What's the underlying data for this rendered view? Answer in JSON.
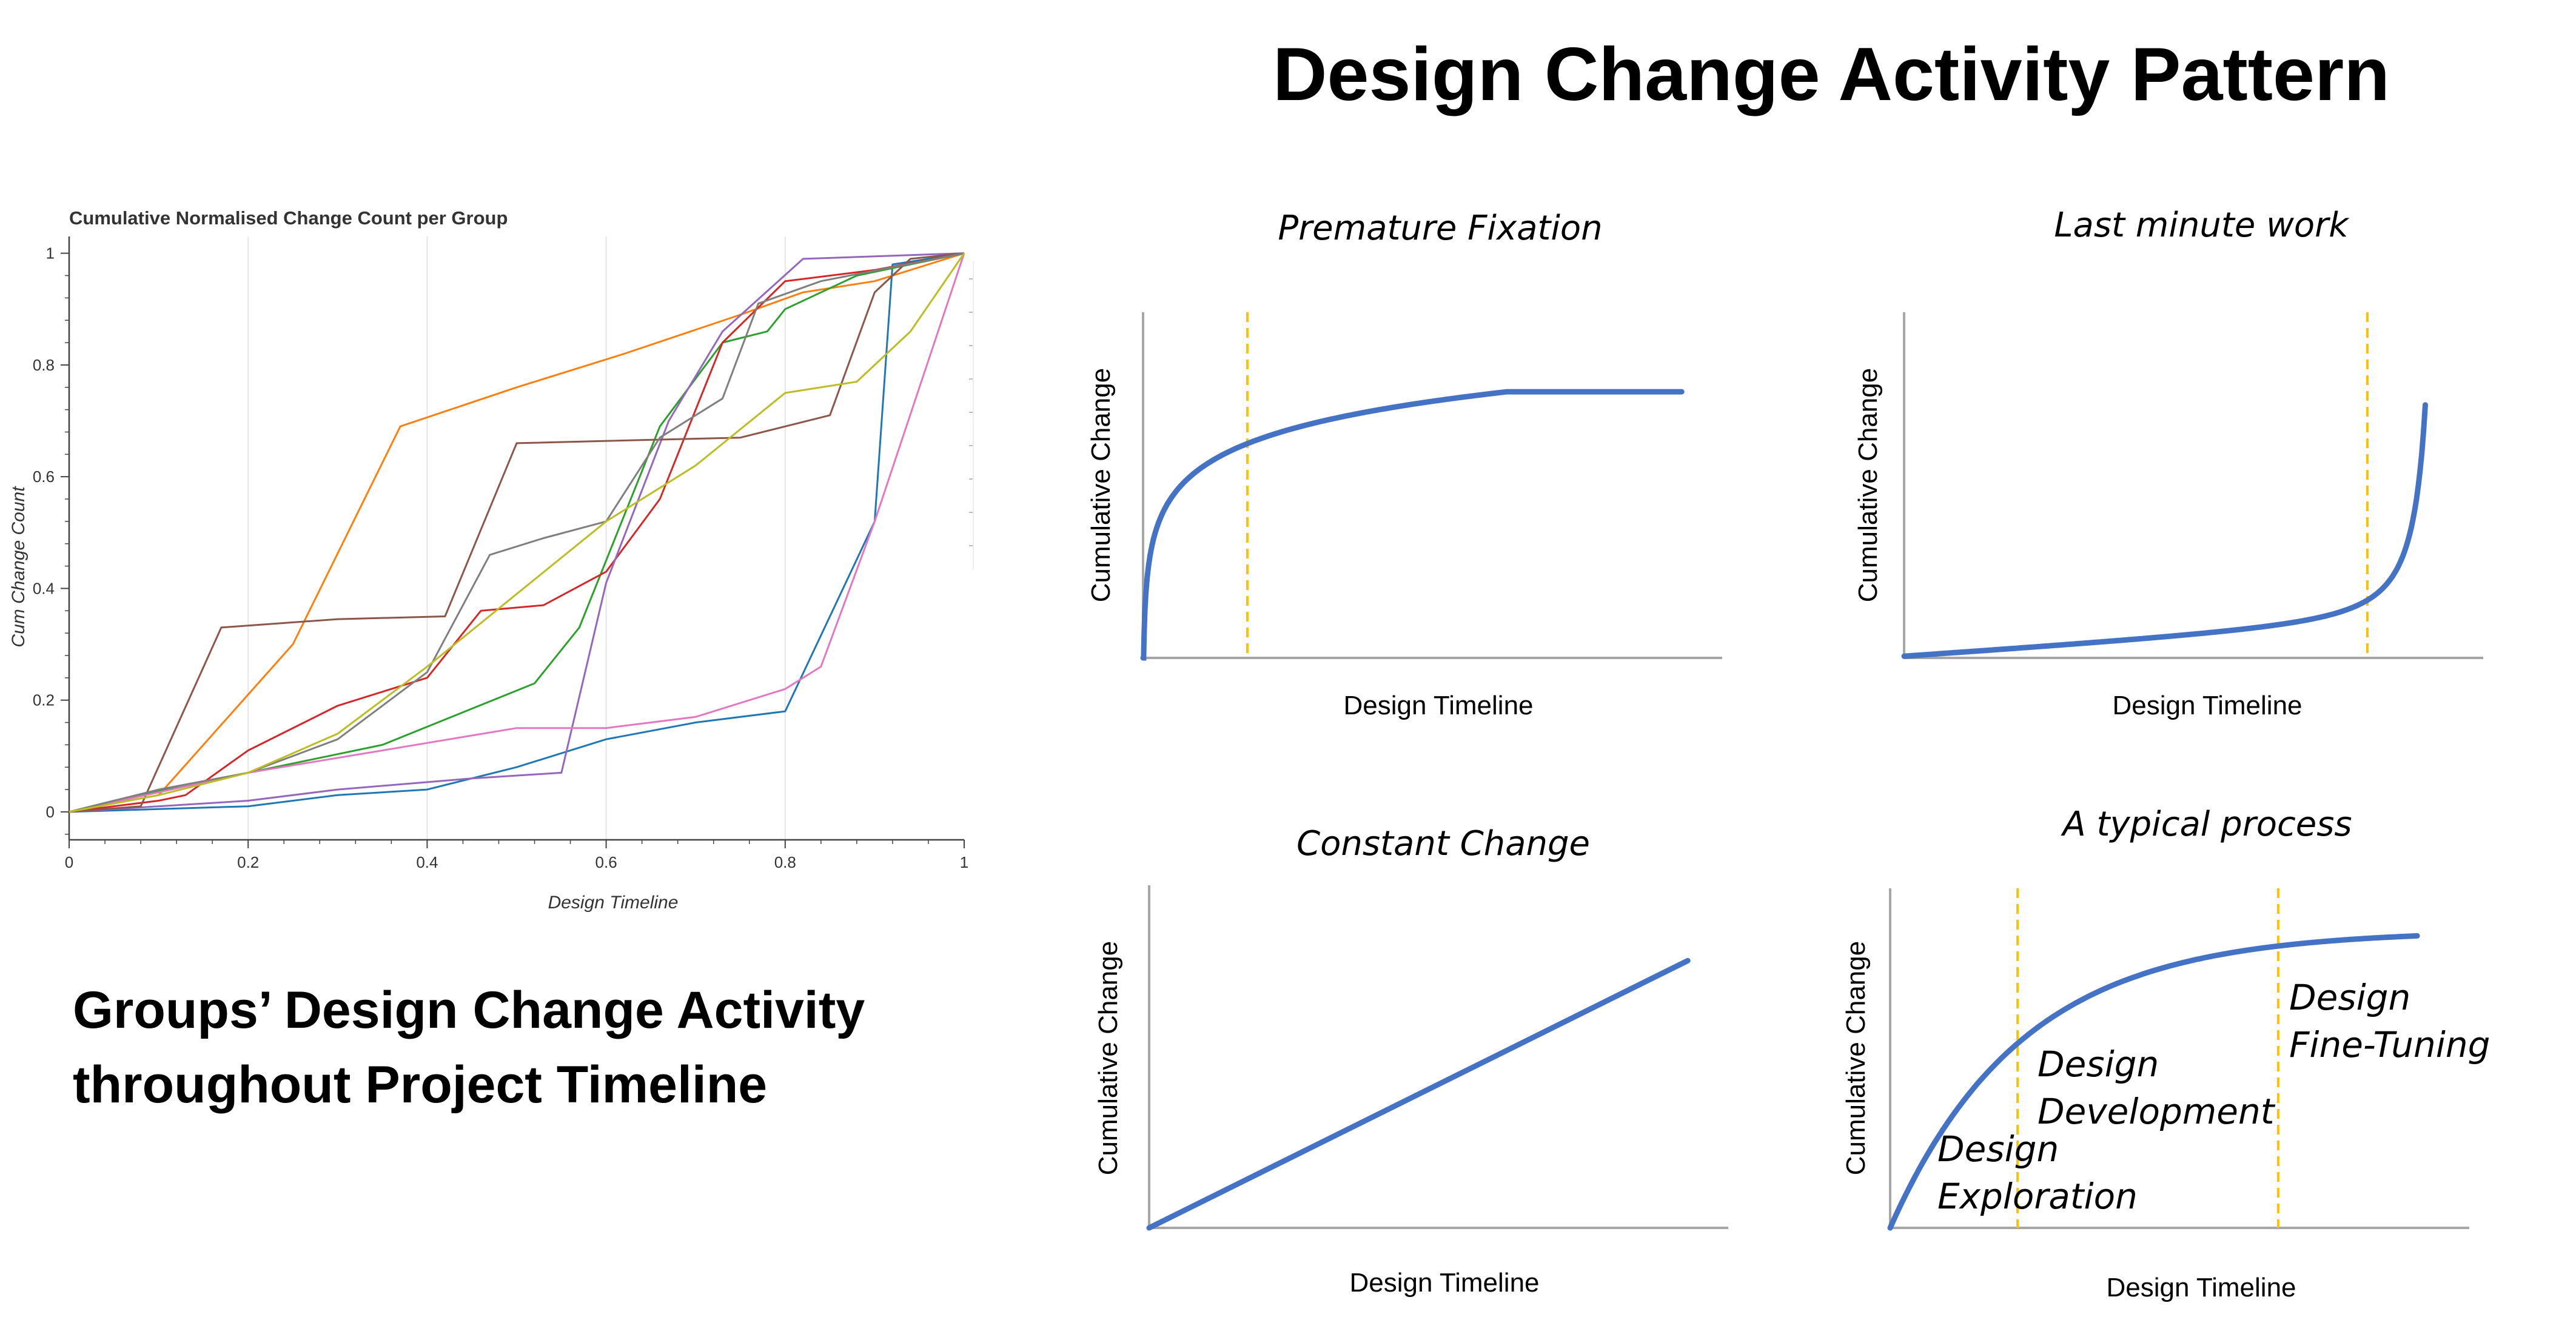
{
  "page": {
    "title": "Design Change Activity Pattern",
    "caption_lines": [
      "Groups’ Design Change Activity",
      "throughout Project Timeline"
    ]
  },
  "colors": {
    "curve": "#4472C4",
    "marker": "#FFC000",
    "axis": "#A6A6A6"
  },
  "chart_data": [
    {
      "type": "line",
      "title": "Cumulative Normalised Change Count per Group",
      "xlabel": "Design Timeline",
      "ylabel": "Cum Change Count",
      "xlim": [
        0,
        1
      ],
      "ylim": [
        -0.05,
        1.03
      ],
      "x_ticks": [
        "0",
        "0.2",
        "0.4",
        "0.6",
        "0.8",
        "1"
      ],
      "y_ticks": [
        "0",
        "0.2",
        "0.4",
        "0.6",
        "0.8",
        "1"
      ],
      "grid": "vertical",
      "series": [
        {
          "color": "#1f77b4",
          "points": [
            [
              0,
              0
            ],
            [
              0.2,
              0.01
            ],
            [
              0.3,
              0.03
            ],
            [
              0.4,
              0.04
            ],
            [
              0.5,
              0.08
            ],
            [
              0.6,
              0.13
            ],
            [
              0.7,
              0.16
            ],
            [
              0.8,
              0.18
            ],
            [
              0.9,
              0.52
            ],
            [
              0.92,
              0.98
            ],
            [
              1,
              1
            ]
          ]
        },
        {
          "color": "#ff7f0e",
          "points": [
            [
              0,
              0
            ],
            [
              0.1,
              0.03
            ],
            [
              0.25,
              0.3
            ],
            [
              0.37,
              0.69
            ],
            [
              0.5,
              0.76
            ],
            [
              0.62,
              0.82
            ],
            [
              0.75,
              0.89
            ],
            [
              0.82,
              0.93
            ],
            [
              0.9,
              0.95
            ],
            [
              1,
              1
            ]
          ]
        },
        {
          "color": "#2ca02c",
          "points": [
            [
              0,
              0
            ],
            [
              0.05,
              0.02
            ],
            [
              0.2,
              0.07
            ],
            [
              0.35,
              0.12
            ],
            [
              0.52,
              0.23
            ],
            [
              0.57,
              0.33
            ],
            [
              0.66,
              0.69
            ],
            [
              0.73,
              0.84
            ],
            [
              0.78,
              0.86
            ],
            [
              0.8,
              0.9
            ],
            [
              0.88,
              0.96
            ],
            [
              1,
              1
            ]
          ]
        },
        {
          "color": "#d62728",
          "points": [
            [
              0,
              0
            ],
            [
              0.1,
              0.02
            ],
            [
              0.13,
              0.03
            ],
            [
              0.2,
              0.11
            ],
            [
              0.3,
              0.19
            ],
            [
              0.4,
              0.24
            ],
            [
              0.46,
              0.36
            ],
            [
              0.53,
              0.37
            ],
            [
              0.6,
              0.43
            ],
            [
              0.66,
              0.56
            ],
            [
              0.73,
              0.84
            ],
            [
              0.8,
              0.95
            ],
            [
              0.9,
              0.97
            ],
            [
              1,
              1
            ]
          ]
        },
        {
          "color": "#9467bd",
          "points": [
            [
              0,
              0
            ],
            [
              0.1,
              0.01
            ],
            [
              0.2,
              0.02
            ],
            [
              0.3,
              0.04
            ],
            [
              0.45,
              0.06
            ],
            [
              0.55,
              0.07
            ],
            [
              0.6,
              0.41
            ],
            [
              0.67,
              0.7
            ],
            [
              0.73,
              0.86
            ],
            [
              0.82,
              0.99
            ],
            [
              1,
              1
            ]
          ]
        },
        {
          "color": "#8c564b",
          "points": [
            [
              0,
              0
            ],
            [
              0.08,
              0.01
            ],
            [
              0.17,
              0.33
            ],
            [
              0.3,
              0.345
            ],
            [
              0.42,
              0.35
            ],
            [
              0.5,
              0.66
            ],
            [
              0.75,
              0.67
            ],
            [
              0.85,
              0.71
            ],
            [
              0.9,
              0.93
            ],
            [
              0.94,
              0.99
            ],
            [
              1,
              1
            ]
          ]
        },
        {
          "color": "#e377c2",
          "points": [
            [
              0,
              0
            ],
            [
              0.2,
              0.07
            ],
            [
              0.35,
              0.11
            ],
            [
              0.5,
              0.15
            ],
            [
              0.6,
              0.15
            ],
            [
              0.7,
              0.17
            ],
            [
              0.8,
              0.22
            ],
            [
              0.84,
              0.26
            ],
            [
              0.9,
              0.52
            ],
            [
              1,
              1
            ]
          ]
        },
        {
          "color": "#7f7f7f",
          "points": [
            [
              0,
              0
            ],
            [
              0.1,
              0.04
            ],
            [
              0.2,
              0.07
            ],
            [
              0.3,
              0.13
            ],
            [
              0.4,
              0.25
            ],
            [
              0.47,
              0.46
            ],
            [
              0.53,
              0.49
            ],
            [
              0.6,
              0.52
            ],
            [
              0.66,
              0.67
            ],
            [
              0.73,
              0.74
            ],
            [
              0.77,
              0.91
            ],
            [
              0.84,
              0.95
            ],
            [
              1,
              1
            ]
          ]
        },
        {
          "color": "#bcbd22",
          "points": [
            [
              0,
              0
            ],
            [
              0.1,
              0.03
            ],
            [
              0.2,
              0.07
            ],
            [
              0.3,
              0.14
            ],
            [
              0.4,
              0.26
            ],
            [
              0.5,
              0.39
            ],
            [
              0.6,
              0.52
            ],
            [
              0.7,
              0.62
            ],
            [
              0.8,
              0.75
            ],
            [
              0.88,
              0.77
            ],
            [
              0.94,
              0.86
            ],
            [
              1,
              1
            ]
          ]
        }
      ]
    },
    {
      "type": "line",
      "title": "Premature Fixation",
      "xlabel": "Design Timeline",
      "ylabel": "Cumulative Change",
      "shape": "early_saturation",
      "markers_x": [
        0.18
      ]
    },
    {
      "type": "line",
      "title": "Last minute work",
      "xlabel": "Design Timeline",
      "ylabel": "Cumulative Change",
      "shape": "late_surge",
      "markers_x": [
        0.8
      ]
    },
    {
      "type": "line",
      "title": "Constant Change",
      "xlabel": "Design Timeline",
      "ylabel": "Cumulative Change",
      "shape": "linear",
      "markers_x": []
    },
    {
      "type": "line",
      "title": "A typical process",
      "xlabel": "Design Timeline",
      "ylabel": "Cumulative Change",
      "shape": "typical",
      "markers_x": [
        0.22,
        0.67
      ],
      "phases": [
        {
          "lines": [
            "Design",
            "Exploration"
          ]
        },
        {
          "lines": [
            "Design",
            "Development"
          ]
        },
        {
          "lines": [
            "Design",
            "Fine-Tuning"
          ]
        }
      ]
    }
  ]
}
